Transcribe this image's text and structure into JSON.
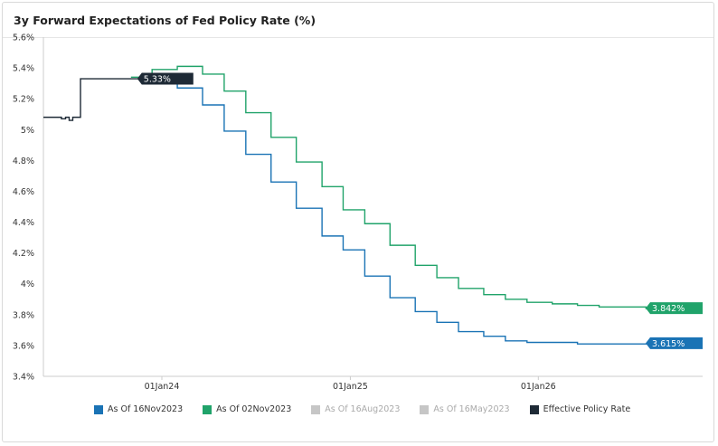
{
  "chart_data": {
    "type": "line",
    "title": "3y Forward Expectations of Fed Policy Rate (%)",
    "xlabel": "",
    "ylabel": "",
    "ylim": [
      3.4,
      5.6
    ],
    "y_ticks": [
      "5.6%",
      "5.4%",
      "5.2%",
      "5%",
      "4.8%",
      "4.6%",
      "4.4%",
      "4.2%",
      "4%",
      "3.8%",
      "3.6%",
      "3.4%"
    ],
    "x_ticks": [
      "01Jan24",
      "01Jan25",
      "01Jan26"
    ],
    "x_tick_dates": [
      "2024-01-01",
      "2025-01-01",
      "2026-01-01"
    ],
    "x_range": [
      "2023-05-16",
      "2026-11-16"
    ],
    "grid": false,
    "legend_position": "bottom",
    "series": [
      {
        "name": "As Of 16Nov2023",
        "color": "#1a73b5",
        "step": true,
        "end_label": "3.615%",
        "x": [
          "2023-11-16",
          "2023-12-13",
          "2024-01-31",
          "2024-03-20",
          "2024-05-01",
          "2024-06-12",
          "2024-07-31",
          "2024-09-18",
          "2024-11-07",
          "2024-12-18",
          "2025-01-29",
          "2025-03-19",
          "2025-05-07",
          "2025-06-18",
          "2025-07-30",
          "2025-09-17",
          "2025-10-29",
          "2025-12-10",
          "2026-01-28",
          "2026-03-18",
          "2026-04-29",
          "2026-06-17",
          "2026-07-29",
          "2026-09-16",
          "2026-10-28"
        ],
        "y": [
          5.33,
          5.33,
          5.27,
          5.16,
          4.99,
          4.84,
          4.66,
          4.49,
          4.31,
          4.22,
          4.05,
          3.91,
          3.82,
          3.75,
          3.69,
          3.66,
          3.63,
          3.62,
          3.62,
          3.61,
          3.61,
          3.61,
          3.61,
          3.615,
          3.615
        ]
      },
      {
        "name": "As Of 02Nov2023",
        "color": "#20a36a",
        "step": true,
        "end_label": "3.842%",
        "x": [
          "2023-11-02",
          "2023-12-13",
          "2024-01-31",
          "2024-03-20",
          "2024-05-01",
          "2024-06-12",
          "2024-07-31",
          "2024-09-18",
          "2024-11-07",
          "2024-12-18",
          "2025-01-29",
          "2025-03-19",
          "2025-05-07",
          "2025-06-18",
          "2025-07-30",
          "2025-09-17",
          "2025-10-29",
          "2025-12-10",
          "2026-01-28",
          "2026-03-18",
          "2026-04-29",
          "2026-06-17",
          "2026-07-29",
          "2026-09-16",
          "2026-10-28"
        ],
        "y": [
          5.34,
          5.39,
          5.41,
          5.36,
          5.25,
          5.11,
          4.95,
          4.79,
          4.63,
          4.48,
          4.39,
          4.25,
          4.12,
          4.04,
          3.97,
          3.93,
          3.9,
          3.88,
          3.87,
          3.86,
          3.85,
          3.85,
          3.84,
          3.842,
          3.842
        ]
      },
      {
        "name": "As Of 16Aug2023",
        "color": "#c6c6c6",
        "hidden": true,
        "x": [],
        "y": []
      },
      {
        "name": "As Of 16May2023",
        "color": "#c6c6c6",
        "hidden": true,
        "x": [],
        "y": []
      },
      {
        "name": "Effective Policy Rate",
        "color": "#1e2a36",
        "step": true,
        "end_label": "5.33%",
        "x": [
          "2023-05-16",
          "2023-06-01",
          "2023-06-20",
          "2023-06-28",
          "2023-07-05",
          "2023-07-12",
          "2023-07-20",
          "2023-07-27",
          "2023-11-16"
        ],
        "y": [
          5.08,
          5.08,
          5.07,
          5.08,
          5.06,
          5.08,
          5.08,
          5.33,
          5.33
        ]
      }
    ]
  }
}
